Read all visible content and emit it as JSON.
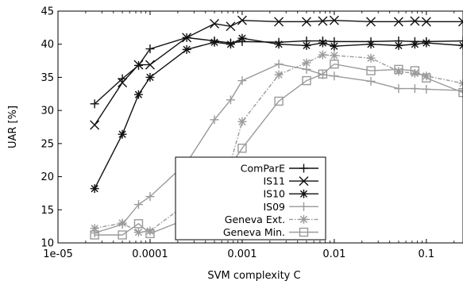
{
  "chart_data": {
    "type": "line",
    "title": "",
    "xlabel": "SVM complexity C",
    "ylabel": "UAR [%]",
    "xscale": "log",
    "xlim": [
      1e-05,
      0.25
    ],
    "ylim": [
      10,
      45
    ],
    "x": [
      2.5e-05,
      5e-05,
      7.5e-05,
      0.0001,
      0.00025,
      0.0005,
      0.00075,
      0.001,
      0.0025,
      0.005,
      0.0075,
      0.01,
      0.025,
      0.05,
      0.075,
      0.1,
      0.25
    ],
    "x_ticks": [
      {
        "value": 1e-05,
        "label": "1e-05"
      },
      {
        "value": 0.0001,
        "label": "0.0001"
      },
      {
        "value": 0.001,
        "label": "0.001"
      },
      {
        "value": 0.01,
        "label": "0.01"
      },
      {
        "value": 0.1,
        "label": "0.1"
      }
    ],
    "y_ticks": [
      10,
      15,
      20,
      25,
      30,
      35,
      40,
      45
    ],
    "legend_position": "bottom-center",
    "grid": false,
    "series": [
      {
        "name": "ComParE",
        "color": "#111111",
        "marker": "plus",
        "dash": "solid",
        "values": [
          31.0,
          34.8,
          36.8,
          39.3,
          41.0,
          40.5,
          40.2,
          40.4,
          40.3,
          40.5,
          40.5,
          40.4,
          40.4,
          40.5,
          40.4,
          40.4,
          40.5
        ]
      },
      {
        "name": "IS11",
        "color": "#111111",
        "marker": "x",
        "dash": "solid",
        "values": [
          27.8,
          34.2,
          36.9,
          36.9,
          41.0,
          43.1,
          42.7,
          43.6,
          43.4,
          43.4,
          43.5,
          43.6,
          43.4,
          43.4,
          43.5,
          43.4,
          43.4
        ]
      },
      {
        "name": "IS10",
        "color": "#111111",
        "marker": "star",
        "dash": "solid",
        "values": [
          18.2,
          26.4,
          32.4,
          35.0,
          39.2,
          40.3,
          40.0,
          40.9,
          40.0,
          39.8,
          40.2,
          39.7,
          40.0,
          39.8,
          40.0,
          40.2,
          39.8
        ]
      },
      {
        "name": "IS09",
        "color": "#9a9a9a",
        "marker": "plus",
        "dash": "solid",
        "values": [
          11.5,
          12.8,
          15.8,
          17.0,
          22.1,
          28.6,
          31.6,
          34.5,
          37.0,
          36.2,
          35.4,
          35.2,
          34.4,
          33.3,
          33.3,
          33.2,
          33.0
        ]
      },
      {
        "name": "Geneva Ext.",
        "color": "#9a9a9a",
        "marker": "star",
        "dash": "dashdot",
        "values": [
          12.2,
          13.0,
          11.6,
          11.8,
          15.9,
          19.6,
          22.2,
          28.3,
          35.4,
          37.2,
          38.4,
          38.3,
          37.9,
          35.9,
          35.6,
          35.2,
          34.1
        ]
      },
      {
        "name": "Geneva Min.",
        "color": "#9a9a9a",
        "marker": "square",
        "dash": "solid",
        "values": [
          11.2,
          11.2,
          12.9,
          11.4,
          13.6,
          20.1,
          21.7,
          24.3,
          31.4,
          34.5,
          35.5,
          37.0,
          36.0,
          36.2,
          36.0,
          34.9,
          32.7
        ]
      }
    ]
  }
}
